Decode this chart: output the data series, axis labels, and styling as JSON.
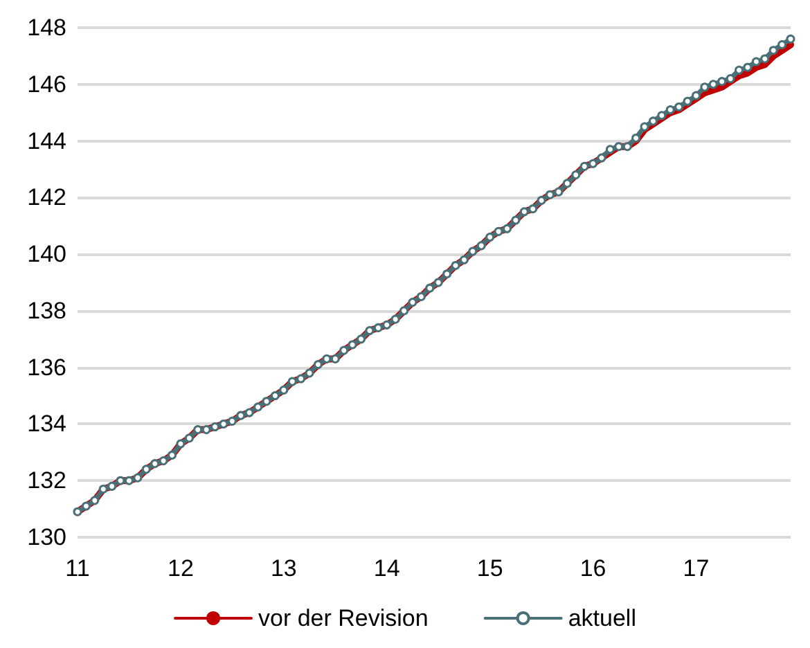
{
  "chart_data": {
    "type": "line",
    "categories": [
      "11",
      null,
      null,
      null,
      null,
      null,
      null,
      null,
      null,
      null,
      null,
      null,
      "12",
      null,
      null,
      null,
      null,
      null,
      null,
      null,
      null,
      null,
      null,
      null,
      "13",
      null,
      null,
      null,
      null,
      null,
      null,
      null,
      null,
      null,
      null,
      null,
      "14",
      null,
      null,
      null,
      null,
      null,
      null,
      null,
      null,
      null,
      null,
      null,
      "15",
      null,
      null,
      null,
      null,
      null,
      null,
      null,
      null,
      null,
      null,
      null,
      "16",
      null,
      null,
      null,
      null,
      null,
      null,
      null,
      null,
      null,
      null,
      null,
      "17",
      null,
      null,
      null,
      null,
      null,
      null,
      null,
      null,
      null,
      null,
      null
    ],
    "series": [
      {
        "name": "vor der Revision",
        "color": "#c00000",
        "marker": "none",
        "values": [
          130.9,
          131.1,
          131.3,
          131.7,
          131.8,
          132.0,
          132.0,
          132.1,
          132.4,
          132.6,
          132.7,
          132.9,
          133.3,
          133.5,
          133.8,
          133.8,
          133.9,
          134.0,
          134.1,
          134.3,
          134.4,
          134.6,
          134.8,
          135.0,
          135.2,
          135.5,
          135.6,
          135.8,
          136.1,
          136.3,
          136.3,
          136.6,
          136.8,
          137.0,
          137.3,
          137.4,
          137.5,
          137.7,
          138.0,
          138.3,
          138.5,
          138.8,
          139.0,
          139.3,
          139.6,
          139.8,
          140.1,
          140.3,
          140.6,
          140.8,
          140.9,
          141.2,
          141.5,
          141.6,
          141.9,
          142.1,
          142.2,
          142.5,
          142.8,
          143.1,
          143.2,
          143.4,
          143.6,
          143.8,
          143.8,
          144.0,
          144.4,
          144.6,
          144.8,
          145.0,
          145.1,
          145.3,
          145.5,
          145.7,
          145.8,
          145.9,
          146.1,
          146.3,
          146.4,
          146.6,
          146.7,
          147.0,
          147.2,
          147.4
        ]
      },
      {
        "name": "aktuell",
        "color": "#4a7077",
        "marker": "circle",
        "values": [
          130.9,
          131.1,
          131.3,
          131.7,
          131.8,
          132.0,
          132.0,
          132.1,
          132.4,
          132.6,
          132.7,
          132.9,
          133.3,
          133.5,
          133.8,
          133.8,
          133.9,
          134.0,
          134.1,
          134.3,
          134.4,
          134.6,
          134.8,
          135.0,
          135.2,
          135.5,
          135.6,
          135.8,
          136.1,
          136.3,
          136.3,
          136.6,
          136.8,
          137.0,
          137.3,
          137.4,
          137.5,
          137.7,
          138.0,
          138.3,
          138.5,
          138.8,
          139.0,
          139.3,
          139.6,
          139.8,
          140.1,
          140.3,
          140.6,
          140.8,
          140.9,
          141.2,
          141.5,
          141.6,
          141.9,
          142.1,
          142.2,
          142.5,
          142.8,
          143.1,
          143.2,
          143.4,
          143.7,
          143.8,
          143.8,
          144.1,
          144.5,
          144.7,
          144.9,
          145.1,
          145.2,
          145.4,
          145.6,
          145.9,
          146.0,
          146.1,
          146.2,
          146.5,
          146.6,
          146.8,
          146.9,
          147.2,
          147.4,
          147.6
        ]
      }
    ],
    "ylim": [
      130,
      148
    ],
    "yticks": [
      130,
      132,
      134,
      136,
      138,
      140,
      142,
      144,
      146,
      148
    ],
    "grid": "y",
    "legend": "bottom",
    "line_style": "solid"
  }
}
